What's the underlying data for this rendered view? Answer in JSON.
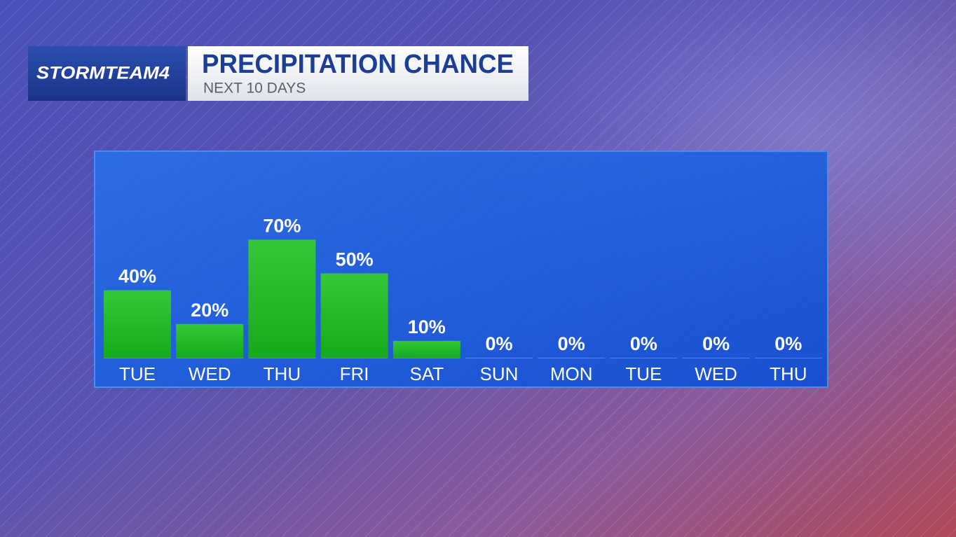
{
  "chart_data": {
    "type": "bar",
    "brand": "STORMTEAM4",
    "title": "PRECIPITATION CHANCE",
    "subtitle": "NEXT 10 DAYS",
    "categories": [
      "TUE",
      "WED",
      "THU",
      "FRI",
      "SAT",
      "SUN",
      "MON",
      "TUE",
      "WED",
      "THU"
    ],
    "values": [
      40,
      20,
      70,
      50,
      10,
      0,
      0,
      0,
      0,
      0
    ],
    "value_labels": [
      "40%",
      "20%",
      "70%",
      "50%",
      "10%",
      "0%",
      "0%",
      "0%",
      "0%",
      "0%"
    ],
    "color": "#19c01f",
    "ylim": [
      0,
      100
    ]
  }
}
